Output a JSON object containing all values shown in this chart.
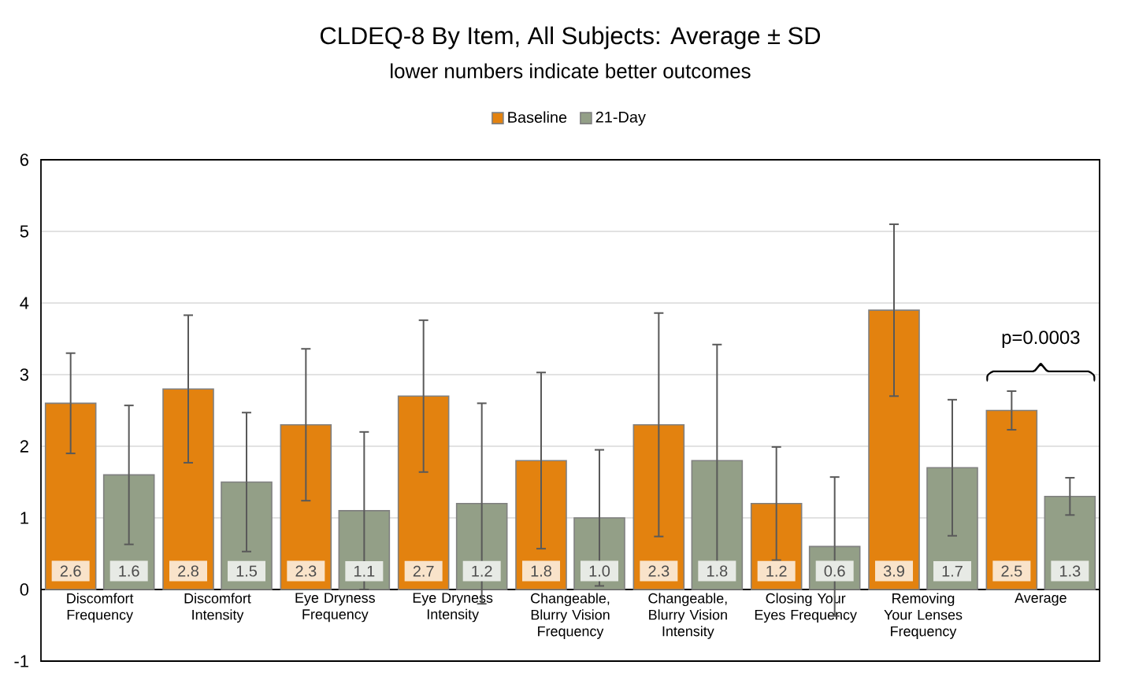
{
  "chart_data": {
    "type": "bar",
    "title": "CLDEQ-8 By Item, All Subjects: Average ± SD",
    "subtitle": "lower numbers indicate better outcomes",
    "categories": [
      "Discomfort Frequency",
      "Discomfort Intensity",
      "Eye Dryness Frequency",
      "Eye Dryness Intensity",
      "Changeable, Blurry Vision Frequency",
      "Changeable, Blurry Vision Intensity",
      "Closing Your Eyes Frequency",
      "Removing Your Lenses Frequency",
      "Average"
    ],
    "series": [
      {
        "name": "Baseline",
        "color": "#e3820f",
        "values": [
          2.6,
          2.8,
          2.3,
          2.7,
          1.8,
          2.3,
          1.2,
          3.9,
          2.5
        ],
        "value_labels": [
          "2.6",
          "2.8",
          "2.3",
          "2.7",
          "1.8",
          "2.3",
          "1.2",
          "3.9",
          "2.5"
        ],
        "errors": [
          0.7,
          1.03,
          1.06,
          1.06,
          1.23,
          1.56,
          0.79,
          1.2,
          0.27
        ]
      },
      {
        "name": "21-Day",
        "color": "#939f87",
        "values": [
          1.6,
          1.5,
          1.1,
          1.2,
          1.0,
          1.8,
          0.6,
          1.7,
          1.3
        ],
        "value_labels": [
          "1.6",
          "1.5",
          "1.1",
          "1.2",
          "1.0",
          "1.8",
          "0.6",
          "1.7",
          "1.3"
        ],
        "errors": [
          0.97,
          0.97,
          1.1,
          1.4,
          0.95,
          1.62,
          0.97,
          0.95,
          0.26
        ]
      }
    ],
    "ylim": [
      -1,
      6
    ],
    "yticks": [
      -1,
      0,
      1,
      2,
      3,
      4,
      5,
      6
    ],
    "grid": "y",
    "legend": "top",
    "annotations": [
      "p=0.0003"
    ]
  }
}
